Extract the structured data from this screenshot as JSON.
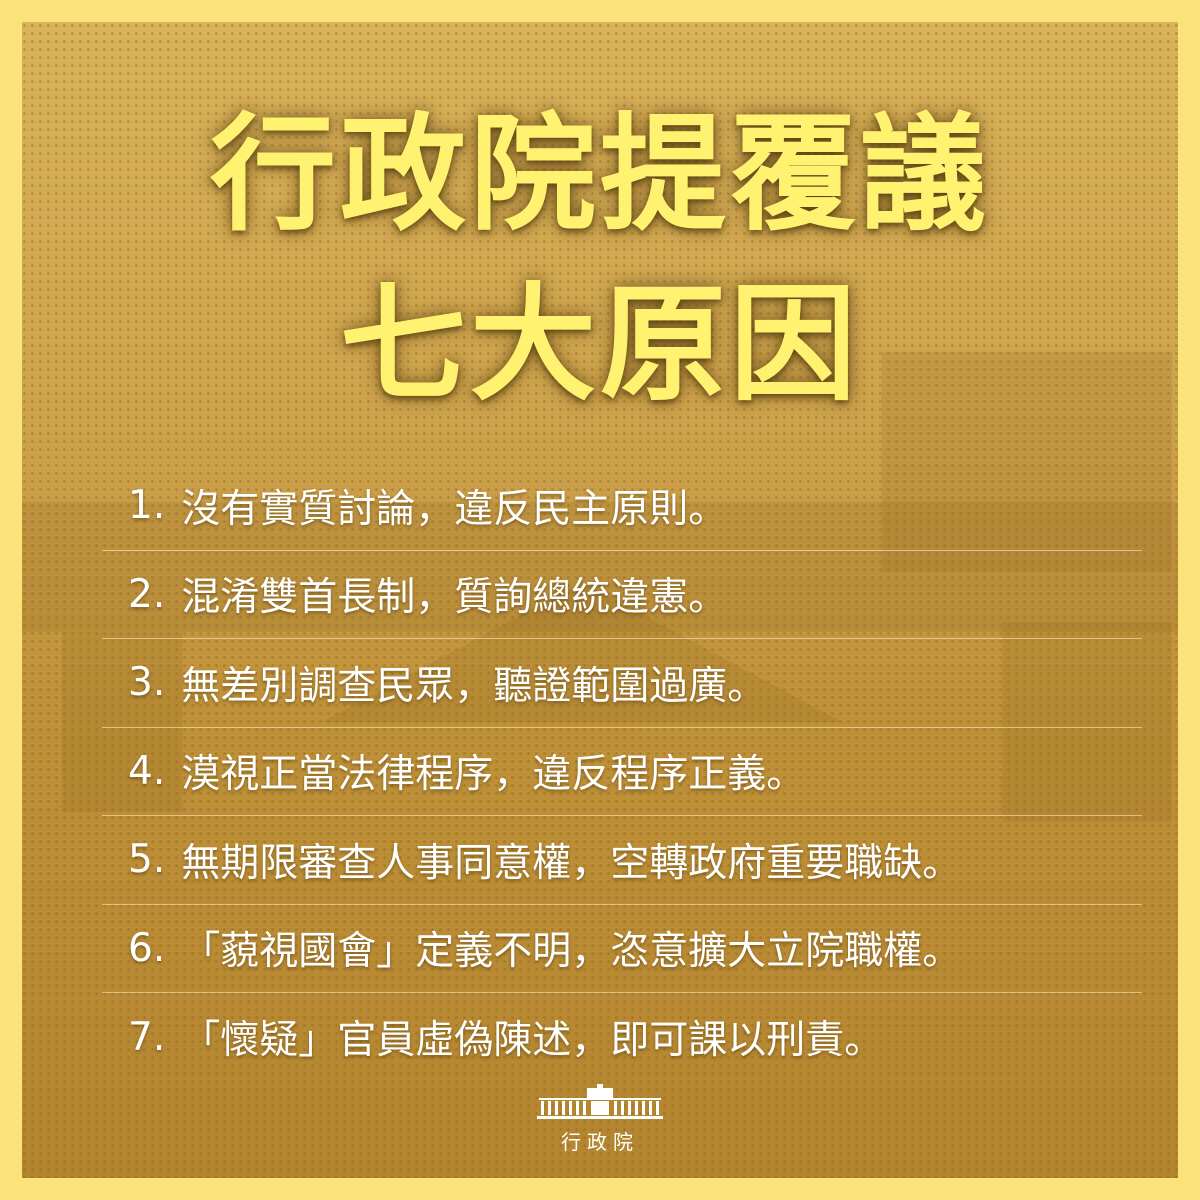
{
  "title": {
    "line1": "行政院提覆議",
    "line2": "七大原因"
  },
  "reasons": [
    {
      "num": "1.",
      "text": "沒有實質討論，違反民主原則。"
    },
    {
      "num": "2.",
      "text": "混淆雙首長制，質詢總統違憲。"
    },
    {
      "num": "3.",
      "text": "無差別調查民眾，聽證範圍過廣。"
    },
    {
      "num": "4.",
      "text": "漠視正當法律程序，違反程序正義。"
    },
    {
      "num": "5.",
      "text": "無期限審查人事同意權，空轉政府重要職缺。"
    },
    {
      "num": "6.",
      "text": "「藐視國會」定義不明，恣意擴大立院職權。"
    },
    {
      "num": "7.",
      "text": "「懷疑」官員虛偽陳述，即可課以刑責。"
    }
  ],
  "logo": {
    "text": "行政院",
    "icon": "executive-yuan-building-icon"
  },
  "colors": {
    "frame": "#fbe27a",
    "title": "#fff270",
    "text": "#ffffff",
    "background": "#c89b45"
  }
}
